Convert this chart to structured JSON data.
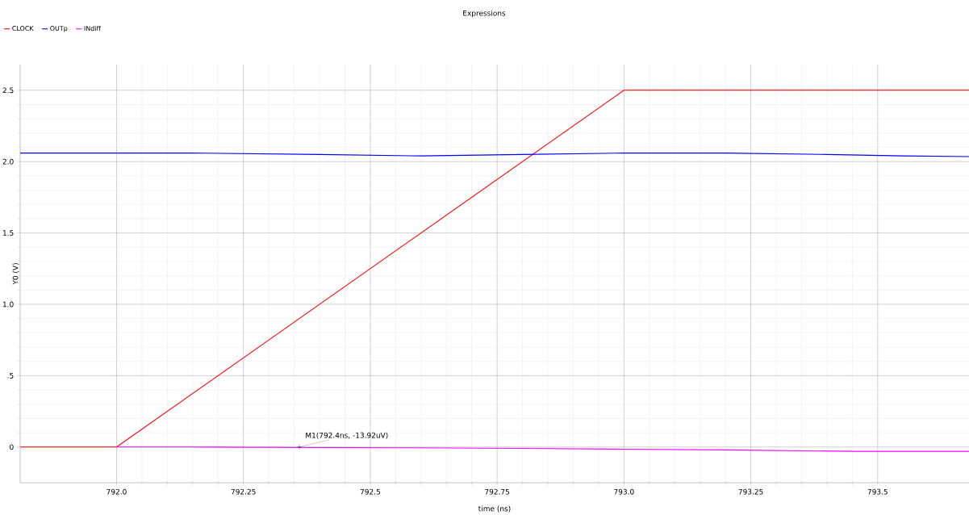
{
  "chart_data": {
    "type": "line",
    "title": "Expressions",
    "xlabel": "time (ns)",
    "ylabel": "Y0 (V)",
    "xlim": [
      791.81,
      793.68
    ],
    "ylim": [
      -0.25,
      2.68
    ],
    "xticks": [
      {
        "value": 792.0,
        "label": "792.0"
      },
      792.25,
      {
        "value": 792.5,
        "label": "792.5"
      },
      792.75,
      {
        "value": 793.0,
        "label": "793.0"
      },
      793.25,
      {
        "value": 793.5,
        "label": "793.5"
      }
    ],
    "yticks": [
      0,
      {
        "value": 0.5,
        "label": ".5"
      },
      {
        "value": 1.0,
        "label": "1.0"
      },
      1.5,
      {
        "value": 2.0,
        "label": "2.0"
      },
      2.5
    ],
    "grid": true,
    "legend": "top left",
    "series": [
      {
        "name": "CLOCK",
        "color": "#ff0000",
        "x": [
          791.81,
          792.0,
          793.0,
          793.68
        ],
        "values": [
          0,
          0,
          2.5,
          2.5
        ]
      },
      {
        "name": "OUTp",
        "color": "#0000ff",
        "x": [
          791.81,
          792.15,
          792.4,
          792.6,
          792.8,
          793.0,
          793.2,
          793.4,
          793.55,
          793.68
        ],
        "values": [
          2.06,
          2.06,
          2.05,
          2.04,
          2.05,
          2.06,
          2.06,
          2.05,
          2.04,
          2.035
        ]
      },
      {
        "name": "INdiff",
        "color": "#ff00ff",
        "x": [
          792.0,
          792.15,
          792.55,
          792.8,
          793.0,
          793.2,
          793.45,
          793.68
        ],
        "values": [
          0,
          0,
          -0.005,
          -0.01,
          -0.015,
          -0.02,
          -0.03,
          -0.03
        ]
      }
    ],
    "annotations": [
      {
        "text": "M1(792.4ns, -13.92uV)",
        "x": 792.36,
        "y": 0
      }
    ]
  }
}
